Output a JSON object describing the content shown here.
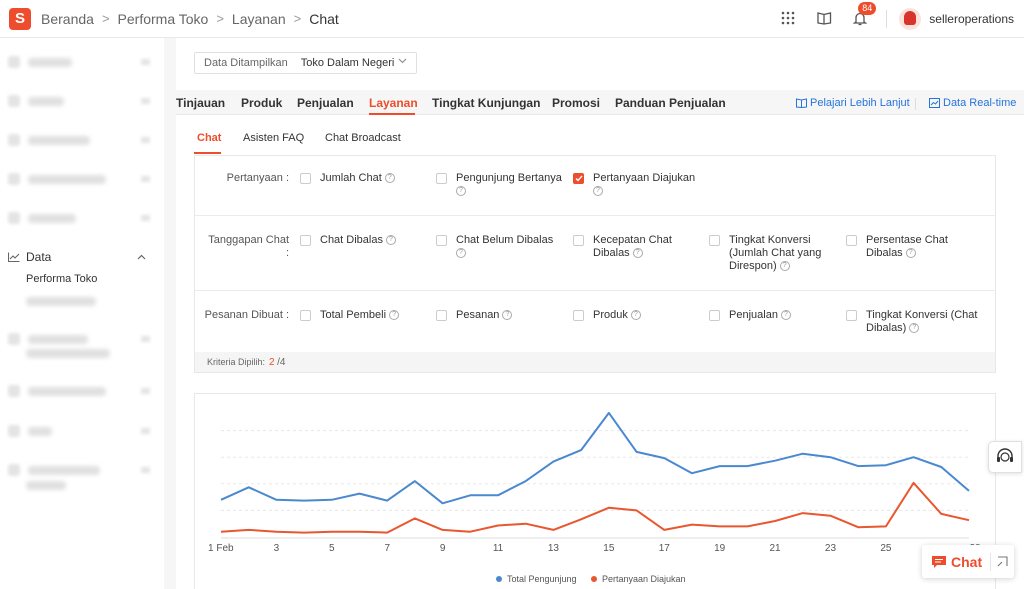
{
  "colors": {
    "brand": "#ee4d2d",
    "link": "#2673dd",
    "series_visitors": "#4a88d0",
    "series_questions": "#e8572f"
  },
  "breadcrumb": {
    "items": [
      "Beranda",
      "Performa Toko",
      "Layanan"
    ],
    "current": "Chat",
    "separator": ">"
  },
  "header": {
    "notification_count": "84",
    "username": "selleroperations",
    "icons": [
      "apps-grid-icon",
      "book-icon",
      "bell-icon"
    ]
  },
  "sidebar": {
    "data_section": {
      "label": "Data",
      "icon": "chart-line-icon"
    },
    "active_item": "Performa Toko"
  },
  "filter": {
    "label": "Data Ditampilkan",
    "value": "Toko Dalam Negeri"
  },
  "main_tabs": [
    {
      "label": "Tinjauan",
      "active": false
    },
    {
      "label": "Produk",
      "active": false
    },
    {
      "label": "Penjualan",
      "active": false
    },
    {
      "label": "Layanan",
      "active": true
    },
    {
      "label": "Tingkat Kunjungan",
      "active": false
    },
    {
      "label": "Promosi",
      "active": false
    },
    {
      "label": "Panduan Penjualan",
      "active": false
    }
  ],
  "links": {
    "learn_more": "Pelajari Lebih Lanjut",
    "realtime": "Data Real-time"
  },
  "sub_tabs": [
    {
      "label": "Chat",
      "active": true
    },
    {
      "label": "Asisten FAQ",
      "active": false
    },
    {
      "label": "Chat Broadcast",
      "active": false
    }
  ],
  "criteria": {
    "rows": [
      {
        "label": "Pertanyaan :",
        "options": [
          {
            "label": "Jumlah Chat",
            "checked": false
          },
          {
            "label": "Pengunjung Bertanya",
            "checked": false
          },
          {
            "label": "Pertanyaan Diajukan",
            "checked": true
          }
        ]
      },
      {
        "label": "Tanggapan Chat :",
        "options": [
          {
            "label": "Chat Dibalas",
            "checked": false
          },
          {
            "label": "Chat Belum Dibalas",
            "checked": false
          },
          {
            "label": "Kecepatan Chat Dibalas",
            "checked": false
          },
          {
            "label": "Tingkat Konversi (Jumlah Chat yang Direspon)",
            "checked": false
          },
          {
            "label": "Persentase Chat Dibalas",
            "checked": false
          }
        ]
      },
      {
        "label": "Pesanan Dibuat :",
        "options": [
          {
            "label": "Total Pembeli",
            "checked": false
          },
          {
            "label": "Pesanan",
            "checked": false
          },
          {
            "label": "Produk",
            "checked": false
          },
          {
            "label": "Penjualan",
            "checked": false
          },
          {
            "label": "Tingkat Konversi (Chat Dibalas)",
            "checked": false
          }
        ]
      }
    ],
    "selected_label": "Kriteria Dipilih:",
    "selected_count": "2",
    "selected_total": "/4"
  },
  "chart_data": {
    "type": "line",
    "x": [
      1,
      2,
      3,
      4,
      5,
      6,
      7,
      8,
      9,
      10,
      11,
      12,
      13,
      14,
      15,
      16,
      17,
      18,
      19,
      20,
      21,
      22,
      23,
      24,
      25,
      26,
      27,
      28
    ],
    "x_tick_labels": [
      "1 Feb",
      "3",
      "5",
      "7",
      "9",
      "11",
      "13",
      "15",
      "17",
      "19",
      "21",
      "23",
      "25",
      "28"
    ],
    "series": [
      {
        "name": "Total Pengunjung",
        "color": "#4a88d0",
        "values": [
          42,
          56,
          42,
          41,
          42,
          49,
          41,
          63,
          38,
          47,
          47,
          63,
          85,
          98,
          140,
          96,
          89,
          72,
          80,
          80,
          86,
          94,
          90,
          80,
          81,
          90,
          79,
          52
        ]
      },
      {
        "name": "Pertanyaan Diajukan",
        "color": "#e8572f",
        "values": [
          6,
          8,
          6,
          5,
          6,
          6,
          5,
          21,
          8,
          6,
          13,
          15,
          8,
          20,
          33,
          30,
          8,
          14,
          12,
          12,
          18,
          27,
          24,
          11,
          12,
          61,
          26,
          19
        ]
      }
    ],
    "ylim": [
      0,
      150
    ],
    "grid": true,
    "legend": "bottom-center"
  },
  "chat_widget": {
    "label": "Chat"
  }
}
